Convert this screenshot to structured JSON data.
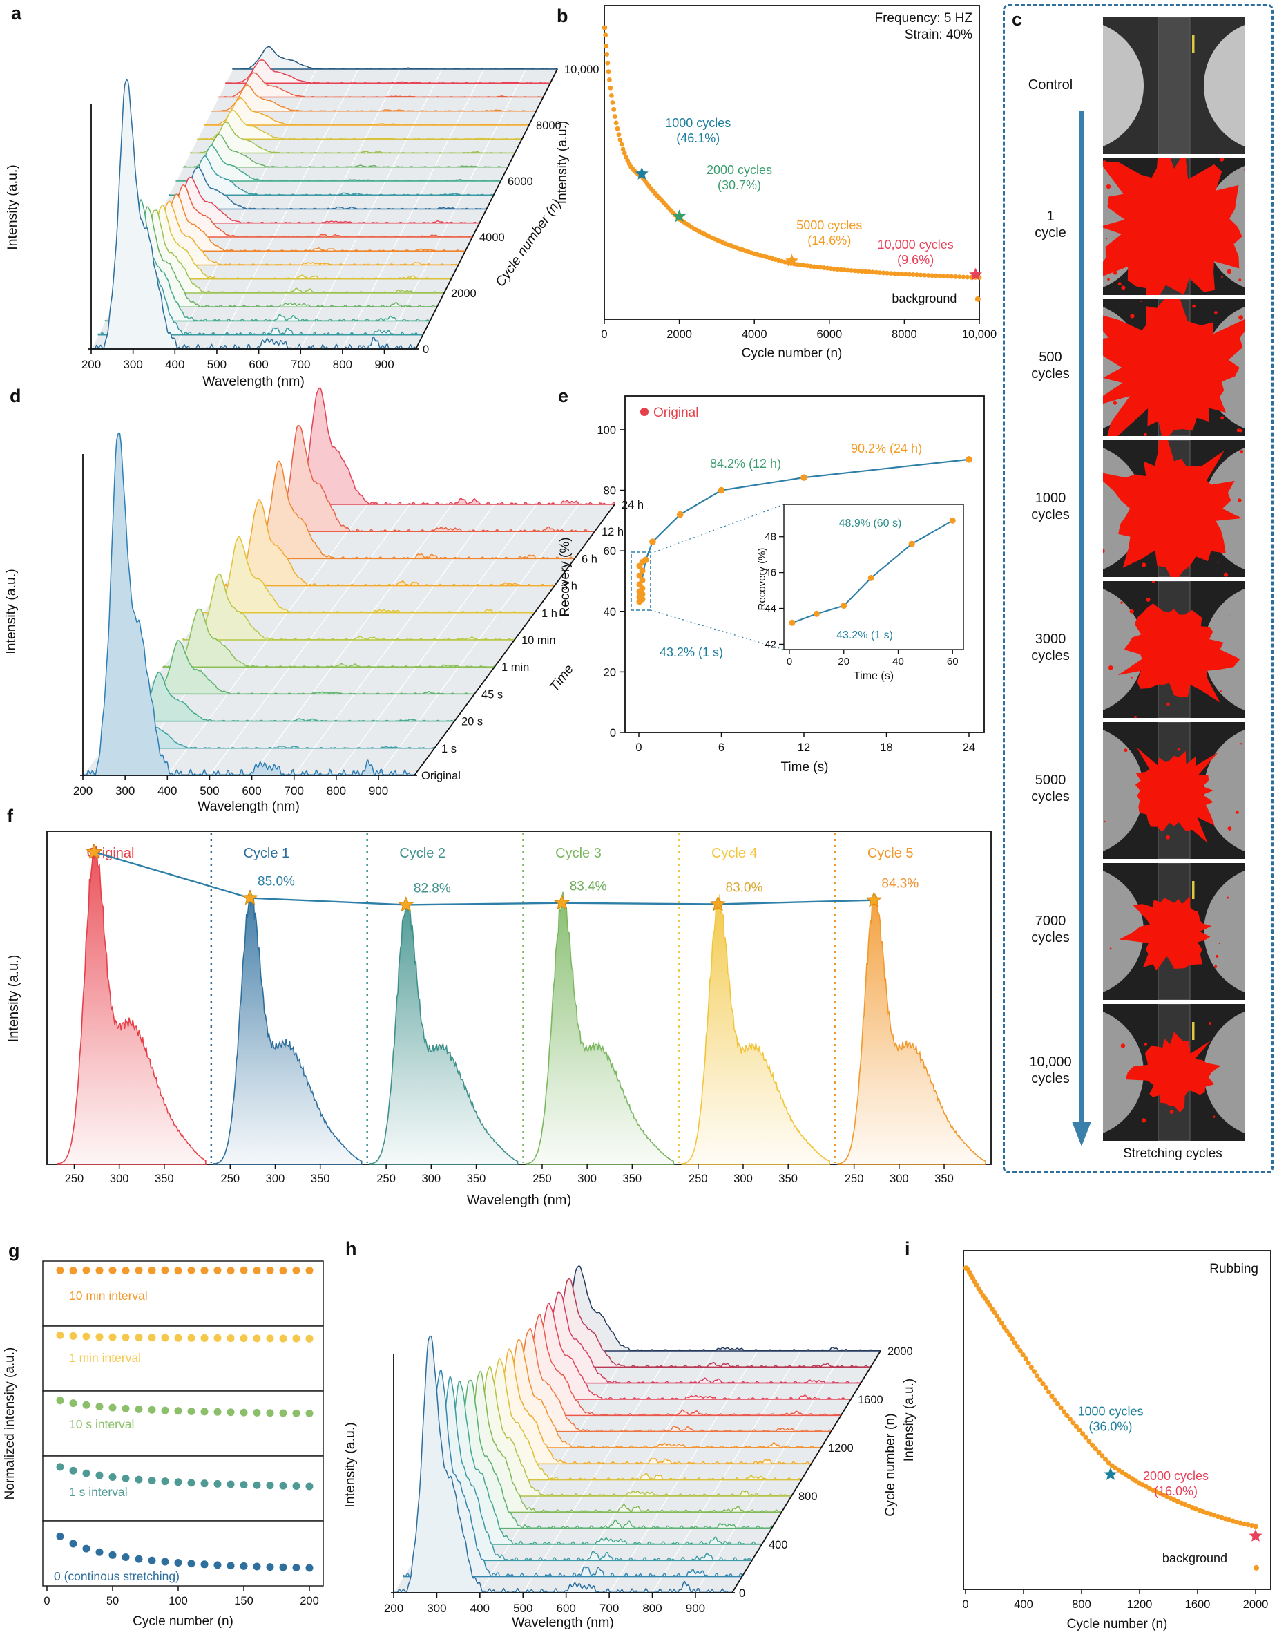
{
  "panel_labels": {
    "a": "a",
    "b": "b",
    "c": "c",
    "d": "d",
    "e": "e",
    "f": "f",
    "g": "g",
    "h": "h",
    "i": "i"
  },
  "chart_data": [
    {
      "panel": "a",
      "type": "waterfall-3d-spectra",
      "xlabel": "Wavelength (nm)",
      "ylabel": "Intensity (a.u.)",
      "zlabel": "Cycle number (n)",
      "x_ticks": [
        200,
        300,
        400,
        500,
        600,
        700,
        800,
        900
      ],
      "z_ticks": [
        "0",
        "2000",
        "4000",
        "6000",
        "8000",
        "10,000"
      ],
      "amps": [
        1.0,
        0.55,
        0.44,
        0.37,
        0.31,
        0.27,
        0.235,
        0.21,
        0.19,
        0.17,
        0.155,
        0.142,
        0.131,
        0.121,
        0.113,
        0.106,
        0.1,
        0.095,
        0.09,
        0.086,
        0.082
      ],
      "colors": [
        "#2d6f9e",
        "#3a9aa3",
        "#43ab8a",
        "#6ab166",
        "#9cc14f",
        "#d8c23c",
        "#f2ab2d",
        "#f0872f",
        "#ea5f44",
        "#e64256",
        "#2d6f9e",
        "#3a9aa3",
        "#43ab8a",
        "#6ab166",
        "#9cc14f",
        "#d8c23c",
        "#f2ab2d",
        "#f0872f",
        "#ea5f44",
        "#e64256",
        "#24597f"
      ]
    },
    {
      "panel": "b",
      "type": "scatter",
      "xlabel": "Cycle number (n)",
      "ylabel": "Intensity (a.u.)",
      "x_ticks": [
        "0",
        "2000",
        "4000",
        "6000",
        "8000",
        "10,000"
      ],
      "x_max": 10000,
      "texts": {
        "frequency": "Frequency: 5 HZ",
        "strain": "Strain: 40%",
        "background": "background"
      },
      "points": [
        [
          20,
          100
        ],
        [
          50,
          93
        ],
        [
          100,
          85.5
        ],
        [
          150,
          79.5
        ],
        [
          200,
          74.5
        ],
        [
          300,
          66.5
        ],
        [
          400,
          60.5
        ],
        [
          500,
          56
        ],
        [
          600,
          52.5
        ],
        [
          700,
          49.8
        ],
        [
          800,
          48.2
        ],
        [
          900,
          47
        ],
        [
          1000,
          46.1
        ],
        [
          1200,
          42.5
        ],
        [
          1400,
          39.3
        ],
        [
          1600,
          36.4
        ],
        [
          1800,
          33.4
        ],
        [
          2000,
          30.7
        ],
        [
          2400,
          27.2
        ],
        [
          2800,
          24.4
        ],
        [
          3200,
          22
        ],
        [
          3600,
          20
        ],
        [
          4000,
          18.2
        ],
        [
          4400,
          16.8
        ],
        [
          4700,
          15.6
        ],
        [
          5000,
          14.6
        ],
        [
          5600,
          13.5
        ],
        [
          6200,
          12.6
        ],
        [
          6800,
          11.9
        ],
        [
          7400,
          11.3
        ],
        [
          8000,
          10.8
        ],
        [
          8600,
          10.4
        ],
        [
          9200,
          10.0
        ],
        [
          9700,
          9.7
        ],
        [
          10000,
          9.6
        ]
      ],
      "background_point": [
        9960,
        1.8
      ],
      "stars": [
        {
          "n": 1000,
          "v": 46.1,
          "color": "#1d7f9e",
          "label": [
            "1000 cycles",
            "(46.1%)"
          ],
          "label_pos": [
            2500,
            64
          ]
        },
        {
          "n": 2000,
          "v": 30.7,
          "color": "#3a9d6e",
          "label": [
            "2000 cycles",
            "(30.7%)"
          ],
          "label_pos": [
            3600,
            47
          ]
        },
        {
          "n": 5000,
          "v": 14.6,
          "color": "#f59b22",
          "label": [
            "5000 cycles",
            "(14.6%)"
          ],
          "label_pos": [
            6000,
            27
          ]
        },
        {
          "n": 9900,
          "v": 9.6,
          "color": "#e8415a",
          "label": [
            "10,000 cycles",
            "(9.6%)"
          ],
          "label_pos": [
            8300,
            20
          ]
        }
      ]
    },
    {
      "panel": "d",
      "type": "waterfall-3d-spectra",
      "xlabel": "Wavelength (nm)",
      "ylabel": "Intensity (a.u.)",
      "zlabel": "Time",
      "x_ticks": [
        200,
        300,
        400,
        500,
        600,
        700,
        800,
        900
      ],
      "z_ticks": [
        "Original",
        "1 s",
        "20 s",
        "45 s",
        "1 min",
        "10 min",
        "1 h",
        "3 h",
        "6 h",
        "12 h",
        "24 h"
      ],
      "amps": [
        1.0,
        0.13,
        0.14,
        0.155,
        0.17,
        0.19,
        0.22,
        0.25,
        0.28,
        0.31,
        0.34
      ],
      "colors": [
        "#2d7fb5",
        "#3fa0a8",
        "#43ab8a",
        "#5fb36c",
        "#8abf55",
        "#b8c744",
        "#e0c438",
        "#f2ab2d",
        "#f0872f",
        "#ea5f44",
        "#e64256"
      ]
    },
    {
      "panel": "e",
      "type": "line-scatter",
      "xlabel": "Time (s)",
      "ylabel": "Recovery (%)",
      "x_ticks": [
        0,
        6,
        12,
        18,
        24
      ],
      "y_ticks": [
        0,
        20,
        40,
        60,
        80,
        100
      ],
      "legend": "Original",
      "main_points": [
        [
          0.15,
          48.9
        ],
        [
          0.5,
          57
        ],
        [
          1,
          63
        ],
        [
          3,
          72
        ],
        [
          6,
          80
        ],
        [
          12,
          84.2
        ],
        [
          24,
          90.2
        ]
      ],
      "cluster_values": [
        43.2,
        44,
        44.8,
        45.7,
        46.6,
        47.6,
        48.9,
        50.3,
        51.8,
        53.4,
        55,
        56.3
      ],
      "annotations": [
        {
          "text": "43.2% (1 s)",
          "color": "#1d7f9e"
        },
        {
          "text": "84.2% (12 h)",
          "color": "#3a9d6e"
        },
        {
          "text": "90.2% (24 h)",
          "color": "#f59b22"
        }
      ],
      "inset": {
        "points": [
          [
            1,
            43.2
          ],
          [
            10,
            43.7
          ],
          [
            20,
            44.15
          ],
          [
            30,
            45.7
          ],
          [
            45,
            47.6
          ],
          [
            60,
            48.9
          ]
        ],
        "x_ticks": [
          0,
          20,
          40,
          60
        ],
        "y_ticks": [
          42,
          44,
          46,
          48
        ],
        "xlabel": "Time (s)",
        "ylabel": "Recovery (%)",
        "ann_top": {
          "text": "48.9% (60 s)",
          "color": "#2e8f8a"
        },
        "ann_bottom": {
          "text": "43.2% (1 s)",
          "color": "#1d7f9e"
        }
      }
    },
    {
      "panel": "f",
      "type": "repeated-spectra",
      "xlabel": "Wavelength (nm)",
      "ylabel": "Intensity (a.u.)",
      "x_ticks": [
        250,
        300,
        350
      ],
      "star_color": "#f5a623",
      "line_color": "#2e7fa8",
      "segments": [
        {
          "label": "Original",
          "color": "#e8404a",
          "amp": 1.0,
          "pct": null,
          "pct_color": null
        },
        {
          "label": "Cycle 1",
          "color": "#2e6f9e",
          "amp": 0.85,
          "pct": "85.0%",
          "pct_color": "#2e7fa8"
        },
        {
          "label": "Cycle 2",
          "color": "#3f918c",
          "amp": 0.828,
          "pct": "82.8%",
          "pct_color": "#3f918c"
        },
        {
          "label": "Cycle 3",
          "color": "#7cb862",
          "amp": 0.834,
          "pct": "83.4%",
          "pct_color": "#6fae5a"
        },
        {
          "label": "Cycle 4",
          "color": "#f2c53d",
          "amp": 0.83,
          "pct": "83.0%",
          "pct_color": "#d8a62e"
        },
        {
          "label": "Cycle 5",
          "color": "#f2992e",
          "amp": 0.843,
          "pct": "84.3%",
          "pct_color": "#f0922e"
        }
      ]
    },
    {
      "panel": "g",
      "type": "dot-rows",
      "xlabel": "Cycle number (n)",
      "ylabel": "Normalized intensity (a.u.)",
      "x_ticks": [
        0,
        50,
        100,
        150,
        200
      ],
      "rows": [
        {
          "label": "10 min interval",
          "color": "#f39a2b",
          "label_dy": 56,
          "label_x": 100,
          "values": [
            0.97,
            0.968,
            0.971,
            0.969,
            0.97,
            0.968,
            0.97,
            0.969,
            0.971,
            0.968,
            0.97,
            0.969,
            0.97,
            0.968,
            0.971,
            0.969,
            0.97,
            0.968,
            0.97,
            0.969
          ]
        },
        {
          "label": "1 min interval",
          "color": "#f5c84c",
          "label_dy": 52,
          "label_x": 100,
          "values": [
            0.97,
            0.965,
            0.962,
            0.959,
            0.957,
            0.956,
            0.955,
            0.954,
            0.953,
            0.952,
            0.952,
            0.951,
            0.951,
            0.95,
            0.95,
            0.949,
            0.949,
            0.948,
            0.948,
            0.947
          ]
        },
        {
          "label": "10 s interval",
          "color": "#8bbf6a",
          "label_dy": 54,
          "label_x": 100,
          "values": [
            0.968,
            0.95,
            0.938,
            0.928,
            0.92,
            0.914,
            0.909,
            0.905,
            0.901,
            0.898,
            0.895,
            0.893,
            0.891,
            0.889,
            0.887,
            0.886,
            0.884,
            0.883,
            0.882,
            0.881
          ]
        },
        {
          "label": "1 s interval",
          "color": "#4f9a94",
          "label_dy": 58,
          "label_x": 100,
          "values": [
            0.958,
            0.933,
            0.915,
            0.901,
            0.89,
            0.881,
            0.873,
            0.866,
            0.861,
            0.856,
            0.851,
            0.847,
            0.844,
            0.841,
            0.838,
            0.835,
            0.833,
            0.831,
            0.829,
            0.827
          ]
        },
        {
          "label": "0 (continous stretching)",
          "color": "#2e6f9e",
          "label_dy": 86,
          "label_x": 78,
          "values": [
            0.928,
            0.878,
            0.845,
            0.821,
            0.802,
            0.787,
            0.775,
            0.765,
            0.757,
            0.75,
            0.744,
            0.739,
            0.734,
            0.73,
            0.727,
            0.724,
            0.721,
            0.719,
            0.717,
            0.715
          ]
        }
      ]
    },
    {
      "panel": "h",
      "type": "waterfall-3d-spectra",
      "xlabel": "Wavelength (nm)",
      "ylabel": "Intensity (a.u.)",
      "zlabel": "Cycle number (n)",
      "x_ticks": [
        200,
        300,
        400,
        500,
        600,
        700,
        800,
        900
      ],
      "z_ticks": [
        "0",
        "400",
        "800",
        "1200",
        "1600",
        "2000"
      ],
      "amps": [
        1.0,
        0.8,
        0.7,
        0.63,
        0.58,
        0.54,
        0.5,
        0.47,
        0.44,
        0.42,
        0.4,
        0.385,
        0.37,
        0.355,
        0.34,
        0.33
      ],
      "colors": [
        "#2d6f9e",
        "#3587b0",
        "#3f9aa8",
        "#45a890",
        "#5bb272",
        "#83ba57",
        "#b3c247",
        "#dbc13a",
        "#f0ad2d",
        "#f2922f",
        "#ee7440",
        "#e9584b",
        "#e64256",
        "#d63d5f",
        "#b93a55",
        "#253a5e"
      ]
    },
    {
      "panel": "i",
      "type": "scatter",
      "xlabel": "Cycle number (n)",
      "ylabel": "Intensity (a.u.)",
      "x_ticks": [
        "0",
        "400",
        "800",
        "1200",
        "1600",
        "2000"
      ],
      "x_max": 2000,
      "texts": {
        "title": "Rubbing",
        "background": "background"
      },
      "points": [
        [
          10,
          100
        ],
        [
          100,
          92.5
        ],
        [
          200,
          85.5
        ],
        [
          300,
          78.5
        ],
        [
          400,
          71.5
        ],
        [
          500,
          64.5
        ],
        [
          600,
          58
        ],
        [
          700,
          52
        ],
        [
          800,
          46.5
        ],
        [
          900,
          41
        ],
        [
          1000,
          36
        ],
        [
          1100,
          33
        ],
        [
          1200,
          30
        ],
        [
          1300,
          27.6
        ],
        [
          1400,
          25.4
        ],
        [
          1500,
          23.3
        ],
        [
          1600,
          21.4
        ],
        [
          1700,
          19.8
        ],
        [
          1800,
          18.3
        ],
        [
          1900,
          17
        ],
        [
          2000,
          16
        ]
      ],
      "background_point": [
        2005,
        2.5
      ],
      "stars": [
        {
          "n": 1000,
          "v": 36,
          "color": "#1d7f9e",
          "label": [
            "1000 cycles",
            "(36.0%)"
          ],
          "label_pos": [
            1000,
            52
          ]
        },
        {
          "n": 2000,
          "v": 16,
          "color": "#e8415a",
          "label": [
            "2000 cycles",
            "(16.0%)"
          ],
          "label_pos": [
            1450,
            31
          ]
        }
      ]
    }
  ],
  "panel_c": {
    "label": "c",
    "border_color": "#2e6f9e",
    "blob_color": "#f51408",
    "arrow_label": "Stretching cycles",
    "items": [
      {
        "label": "Control",
        "type": "control",
        "scalebar": true
      },
      {
        "label": "1\ncycle",
        "blob": 0.92,
        "speckles": 70
      },
      {
        "label": "500\ncycles",
        "blob": 0.88,
        "speckles": 45
      },
      {
        "label": "1000\ncycles",
        "blob": 0.76,
        "speckles": 30
      },
      {
        "label": "3000\ncycles",
        "blob": 0.62,
        "speckles": 14
      },
      {
        "label": "5000\ncycles",
        "blob": 0.52,
        "speckles": 7
      },
      {
        "label": "7000\ncycles",
        "blob": 0.47,
        "speckles": 5,
        "scalebar": true
      },
      {
        "label": "10,000\ncycles",
        "blob": 0.44,
        "speckles": 9,
        "scalebar": true
      }
    ]
  }
}
